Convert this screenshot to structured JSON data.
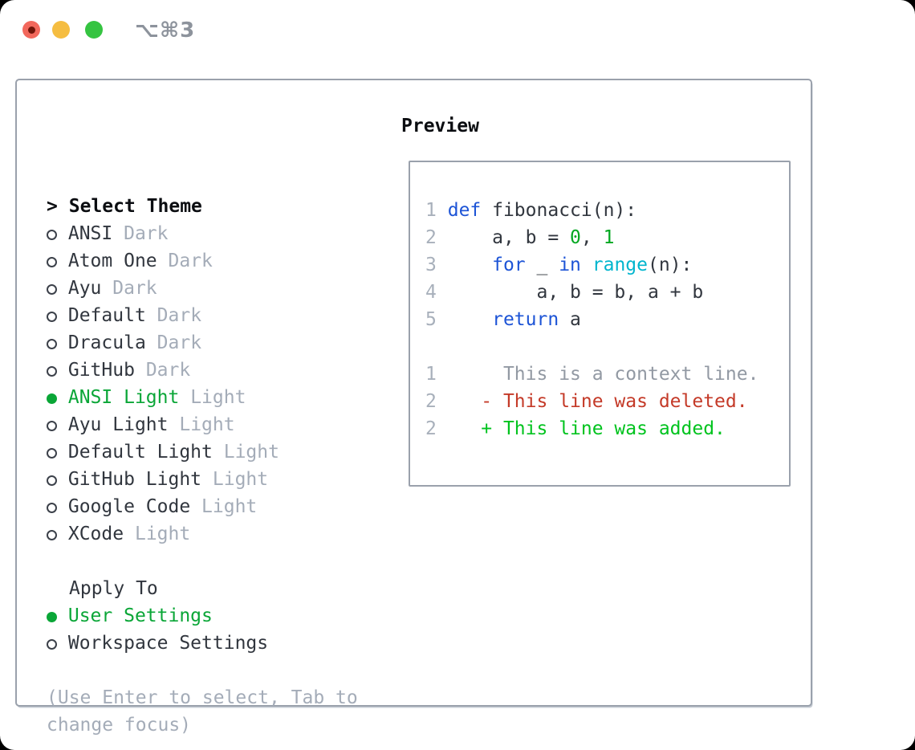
{
  "window": {
    "title": "⌥⌘3",
    "controls": [
      "close",
      "minimize",
      "zoom"
    ],
    "close_has_unsaved_dot": true
  },
  "colors": {
    "header": "#0b0d11",
    "text": "#31363e",
    "muted": "#a4acb8",
    "bullet": "#3c414a",
    "selected": "#0aa637",
    "keyword": "#1d54d6",
    "function": "#00b5ce",
    "number": "#00a71f",
    "line_number": "#a8b0bb",
    "context": "#9299a3",
    "deleted": "#c43a28",
    "added": "#00c31e",
    "panel_border": "#9aa1ac",
    "window_title": "#8d939c",
    "traffic_red": "#f2685c",
    "traffic_red_dot": "#701509",
    "traffic_yellow": "#f5bd41",
    "traffic_green": "#35c441"
  },
  "theme_panel": {
    "header": {
      "prompt": ">",
      "label": "Select Theme"
    },
    "items": [
      {
        "name": "ANSI",
        "variant": "Dark",
        "selected": false
      },
      {
        "name": "Atom One",
        "variant": "Dark",
        "selected": false
      },
      {
        "name": "Ayu",
        "variant": "Dark",
        "selected": false
      },
      {
        "name": "Default",
        "variant": "Dark",
        "selected": false
      },
      {
        "name": "Dracula",
        "variant": "Dark",
        "selected": false
      },
      {
        "name": "GitHub",
        "variant": "Dark",
        "selected": false
      },
      {
        "name": "ANSI Light",
        "variant": "Light",
        "selected": true
      },
      {
        "name": "Ayu Light",
        "variant": "Light",
        "selected": false
      },
      {
        "name": "Default Light",
        "variant": "Light",
        "selected": false
      },
      {
        "name": "GitHub Light",
        "variant": "Light",
        "selected": false
      },
      {
        "name": "Google Code",
        "variant": "Light",
        "selected": false
      },
      {
        "name": "XCode",
        "variant": "Light",
        "selected": false
      }
    ],
    "apply_to": {
      "label": "Apply To",
      "options": [
        {
          "name": "User Settings",
          "selected": true
        },
        {
          "name": "Workspace Settings",
          "selected": false
        }
      ]
    },
    "hint": "(Use Enter to select, Tab to change focus)"
  },
  "preview": {
    "label": "Preview",
    "code_lines": [
      {
        "num": "1",
        "tokens": [
          {
            "text": "def",
            "color": "keyword"
          },
          {
            "text": " fibonacci(n):",
            "color": "text"
          }
        ]
      },
      {
        "num": "2",
        "tokens": [
          {
            "text": "    a, b = ",
            "color": "text"
          },
          {
            "text": "0",
            "color": "number"
          },
          {
            "text": ", ",
            "color": "text"
          },
          {
            "text": "1",
            "color": "number"
          }
        ]
      },
      {
        "num": "3",
        "tokens": [
          {
            "text": "    ",
            "color": "text"
          },
          {
            "text": "for",
            "color": "keyword"
          },
          {
            "text": " _ ",
            "color": "text"
          },
          {
            "text": "in",
            "color": "keyword"
          },
          {
            "text": " ",
            "color": "text"
          },
          {
            "text": "range",
            "color": "function"
          },
          {
            "text": "(n):",
            "color": "text"
          }
        ]
      },
      {
        "num": "4",
        "tokens": [
          {
            "text": "        a, b = b, a + b",
            "color": "text"
          }
        ]
      },
      {
        "num": "5",
        "tokens": [
          {
            "text": "    ",
            "color": "text"
          },
          {
            "text": "return",
            "color": "keyword"
          },
          {
            "text": " a",
            "color": "text"
          }
        ]
      },
      {
        "num": "",
        "tokens": []
      },
      {
        "num": "1",
        "tokens": [
          {
            "text": "     This is a context line.",
            "color": "context"
          }
        ]
      },
      {
        "num": "2",
        "tokens": [
          {
            "text": "   - This line was deleted.",
            "color": "deleted"
          }
        ]
      },
      {
        "num": "2",
        "tokens": [
          {
            "text": "   + This line was added.",
            "color": "added"
          }
        ]
      }
    ]
  }
}
